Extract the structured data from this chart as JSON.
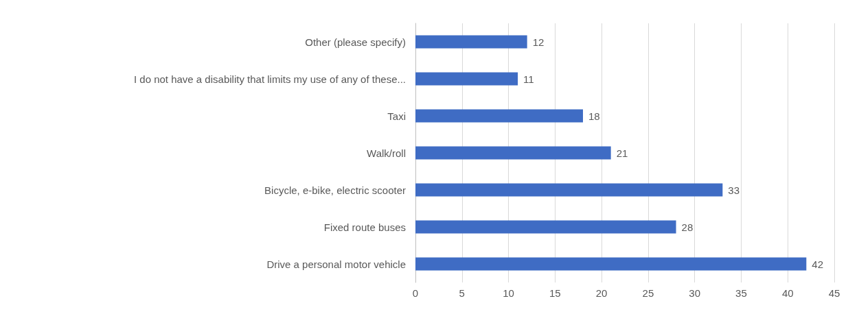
{
  "chart_data": {
    "type": "bar",
    "orientation": "horizontal",
    "categories": [
      "Other (please specify)",
      "I do not have a disability that limits my use of any of these...",
      "Taxi",
      "Walk/roll",
      "Bicycle, e-bike, electric scooter",
      "Fixed route buses",
      "Drive a personal motor vehicle"
    ],
    "values": [
      12,
      11,
      18,
      21,
      33,
      28,
      42
    ],
    "color": "#3f6cc4",
    "xlim": [
      0,
      45
    ],
    "xticks": [
      0,
      5,
      10,
      15,
      20,
      25,
      30,
      35,
      40,
      45
    ],
    "grid": "x",
    "data_labels": true
  }
}
